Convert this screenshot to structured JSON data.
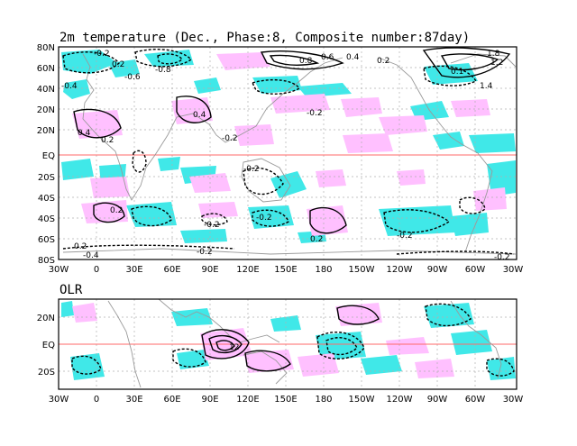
{
  "top_panel": {
    "title": "2m temperature (Dec., Phase:8, Composite number:87day)",
    "y_ticks": [
      "80N",
      "60N",
      "40N",
      "20N",
      "EQ",
      "20S",
      "40S",
      "60S",
      "80S"
    ],
    "x_ticks": [
      "30W",
      "0",
      "30E",
      "60E",
      "90E",
      "120E",
      "150E",
      "180",
      "150W",
      "120W",
      "90W",
      "60W",
      "30W"
    ],
    "contour_labels": [
      "-0.2",
      "-0.4",
      "0.2",
      "-0.6",
      "-0.8",
      "0.8",
      "0.6",
      "0.4",
      "0.2",
      "1.8",
      "1.2",
      "0.1",
      "1.4",
      "0.4",
      "-0.2",
      "-0.2",
      "0.2",
      "0.4",
      "-0.2",
      "0.2",
      "-0.2",
      "-0.2",
      "-0.2",
      "0.2",
      "-0.2",
      "-0.4",
      "-0.2",
      "0.2"
    ]
  },
  "bottom_panel": {
    "title": "OLR",
    "y_ticks": [
      "20N",
      "EQ",
      "20S"
    ],
    "x_ticks": [
      "30W",
      "0",
      "30E",
      "60E",
      "90E",
      "120E",
      "150E",
      "180",
      "150W",
      "120W",
      "90W",
      "60W",
      "30W"
    ],
    "contour_labels": [
      "12"
    ]
  },
  "colors": {
    "positive_shade": "#ffc0ff",
    "negative_shade": "#40e8e8",
    "equator_line": "#ff6a6a",
    "coastline": "#9a9a9a"
  }
}
